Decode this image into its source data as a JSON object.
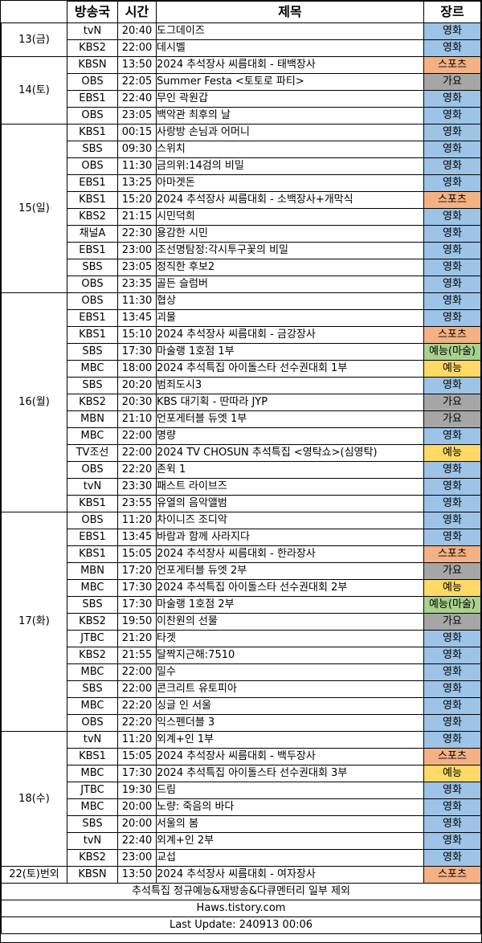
{
  "headers": {
    "channel": "방송국",
    "time": "시간",
    "title": "제목",
    "genre": "장르"
  },
  "genre_colors": {
    "영화": "#9dc3e6",
    "스포츠": "#f4b183",
    "가요": "#a6a6a6",
    "예능": "#ffd966",
    "예능(마술)": "#a9d18e"
  },
  "days": [
    {
      "date": "13(금)",
      "rows": [
        {
          "channel": "tvN",
          "time": "20:40",
          "title": "도그데이즈",
          "genre": "영화"
        },
        {
          "channel": "KBS2",
          "time": "22:00",
          "title": "데시벨",
          "genre": "영화"
        }
      ]
    },
    {
      "date": "14(토)",
      "rows": [
        {
          "channel": "KBSN",
          "time": "13:50",
          "title": "2024 추석장사 씨름대회 - 태백장사",
          "genre": "스포츠"
        },
        {
          "channel": "OBS",
          "time": "22:05",
          "title": "Summer Festa <토토로 파티>",
          "genre": "가요"
        },
        {
          "channel": "EBS1",
          "time": "22:40",
          "title": "무인 곽원갑",
          "genre": "영화"
        },
        {
          "channel": "OBS",
          "time": "23:05",
          "title": "백악관 최후의 날",
          "genre": "영화"
        }
      ]
    },
    {
      "date": "15(일)",
      "rows": [
        {
          "channel": "KBS1",
          "time": "00:15",
          "title": "사랑방 손님과 어머니",
          "genre": "영화"
        },
        {
          "channel": "SBS",
          "time": "09:30",
          "title": "스위치",
          "genre": "영화"
        },
        {
          "channel": "OBS",
          "time": "11:30",
          "title": "금의위:14검의 비밀",
          "genre": "영화"
        },
        {
          "channel": "EBS1",
          "time": "13:25",
          "title": "아마겟돈",
          "genre": "영화"
        },
        {
          "channel": "KBS1",
          "time": "15:20",
          "title": "2024 추석장사 씨름대회 - 소백장사+개막식",
          "genre": "스포츠"
        },
        {
          "channel": "KBS2",
          "time": "21:15",
          "title": "시민덕희",
          "genre": "영화"
        },
        {
          "channel": "채널A",
          "time": "22:30",
          "title": "용감한 시민",
          "genre": "영화"
        },
        {
          "channel": "EBS1",
          "time": "23:00",
          "title": "조선명탐정:각시투구꽃의 비밀",
          "genre": "영화"
        },
        {
          "channel": "SBS",
          "time": "23:05",
          "title": "정직한 후보2",
          "genre": "영화"
        },
        {
          "channel": "OBS",
          "time": "23:35",
          "title": "골든 슬럼버",
          "genre": "영화"
        }
      ]
    },
    {
      "date": "16(월)",
      "rows": [
        {
          "channel": "OBS",
          "time": "11:30",
          "title": "협상",
          "genre": "영화"
        },
        {
          "channel": "EBS1",
          "time": "13:45",
          "title": "괴물",
          "genre": "영화"
        },
        {
          "channel": "KBS1",
          "time": "15:10",
          "title": "2024 추석장사 씨름대회 - 금강장사",
          "genre": "스포츠"
        },
        {
          "channel": "SBS",
          "time": "17:30",
          "title": "마술랭 1호점 1부",
          "genre": "예능(마술)"
        },
        {
          "channel": "MBC",
          "time": "18:00",
          "title": "2024 추석특집 아이돌스타 선수권대회 1부",
          "genre": "예능"
        },
        {
          "channel": "SBS",
          "time": "20:20",
          "title": "범죄도시3",
          "genre": "영화"
        },
        {
          "channel": "KBS2",
          "time": "20:30",
          "title": "KBS 대기획 - 딴따라 JYP",
          "genre": "가요"
        },
        {
          "channel": "MBN",
          "time": "21:10",
          "title": "언포게터블 듀엣 1부",
          "genre": "가요"
        },
        {
          "channel": "MBC",
          "time": "22:00",
          "title": "명량",
          "genre": "영화"
        },
        {
          "channel": "TV조선",
          "time": "22:00",
          "title": "2024 TV CHOSUN 추석특집 <영탁쇼>(심영탁)",
          "genre": "예능"
        },
        {
          "channel": "OBS",
          "time": "22:20",
          "title": "존윅 1",
          "genre": "영화"
        },
        {
          "channel": "tvN",
          "time": "23:30",
          "title": "패스트 라이브즈",
          "genre": "영화"
        },
        {
          "channel": "KBS1",
          "time": "23:55",
          "title": "유열의 음악앨범",
          "genre": "영화"
        }
      ]
    },
    {
      "date": "17(화)",
      "rows": [
        {
          "channel": "OBS",
          "time": "11:20",
          "title": "차이니즈 조디악",
          "genre": "영화"
        },
        {
          "channel": "EBS1",
          "time": "13:45",
          "title": "바람과 함께 사라지다",
          "genre": "영화"
        },
        {
          "channel": "KBS1",
          "time": "15:05",
          "title": "2024 추석장사 씨름대회 - 한라장사",
          "genre": "스포츠"
        },
        {
          "channel": "MBN",
          "time": "17:20",
          "title": "언포게터블 듀엣 2부",
          "genre": "가요"
        },
        {
          "channel": "MBC",
          "time": "17:30",
          "title": "2024 추석특집 아이돌스타 선수권대회 2부",
          "genre": "예능"
        },
        {
          "channel": "SBS",
          "time": "17:30",
          "title": "마술랭 1호점 2부",
          "genre": "예능(마술)"
        },
        {
          "channel": "KBS2",
          "time": "19:50",
          "title": "이찬원의 선물",
          "genre": "가요"
        },
        {
          "channel": "JTBC",
          "time": "21:20",
          "title": "타겟",
          "genre": "영화"
        },
        {
          "channel": "KBS2",
          "time": "21:55",
          "title": "달짝지근해:7510",
          "genre": "영화"
        },
        {
          "channel": "MBC",
          "time": "22:00",
          "title": "밀수",
          "genre": "영화"
        },
        {
          "channel": "SBS",
          "time": "22:00",
          "title": "콘크리트 유토피아",
          "genre": "영화"
        },
        {
          "channel": "MBC",
          "time": "22:20",
          "title": "싱글 인 서울",
          "genre": "영화"
        },
        {
          "channel": "OBS",
          "time": "22:20",
          "title": "익스펜더블 3",
          "genre": "영화"
        }
      ]
    },
    {
      "date": "18(수)",
      "rows": [
        {
          "channel": "tvN",
          "time": "11:20",
          "title": "외계+인 1부",
          "genre": "영화"
        },
        {
          "channel": "KBS1",
          "time": "15:05",
          "title": "2024 추석장사 씨름대회 - 백두장사",
          "genre": "스포츠"
        },
        {
          "channel": "MBC",
          "time": "17:30",
          "title": "2024 추석특집 아이돌스타 선수권대회 3부",
          "genre": "예능"
        },
        {
          "channel": "JTBC",
          "time": "19:30",
          "title": "드림",
          "genre": "영화"
        },
        {
          "channel": "MBC",
          "time": "20:00",
          "title": "노량: 죽음의 바다",
          "genre": "영화"
        },
        {
          "channel": "SBS",
          "time": "20:00",
          "title": "서울의 봄",
          "genre": "영화"
        },
        {
          "channel": "tvN",
          "time": "22:40",
          "title": "외계+인 2부",
          "genre": "영화"
        },
        {
          "channel": "KBS2",
          "time": "23:00",
          "title": "교섭",
          "genre": "영화"
        }
      ]
    },
    {
      "date": "22(토)번외",
      "rows": [
        {
          "channel": "KBSN",
          "time": "13:50",
          "title": "2024 추석장사 씨름대회 - 여자장사",
          "genre": "스포츠"
        }
      ]
    }
  ],
  "footer": {
    "note": "추석특집 정규예능&재방송&다큐멘터리 일부 제외",
    "site": "Haws.tistory.com",
    "updated": "Last Update: 240913 00:06"
  }
}
